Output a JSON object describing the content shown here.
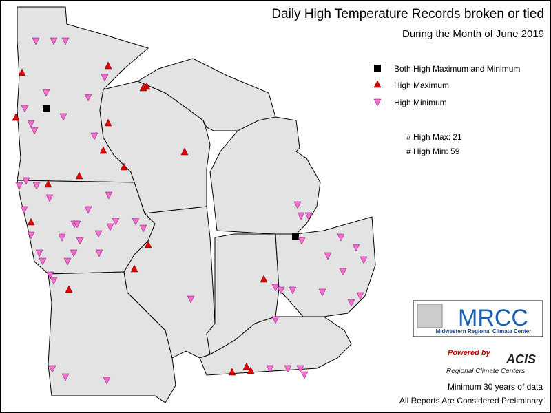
{
  "title": "Daily High Temperature Records broken or tied",
  "subtitle": "During the Month of June 2019",
  "legend": [
    "Both High Maximum and Minimum",
    "High Maximum",
    "High Minimum"
  ],
  "counts": [
    "# High Max: 21",
    "# High Min: 59"
  ],
  "logo": {
    "name": "MRCC",
    "full_name": "Midwestern Regional Climate Center"
  },
  "acis": {
    "powered_by": "Powered by",
    "name": "ACIS",
    "full_name": "Regional Climate Centers"
  },
  "notes": [
    "Minimum 30 years of data",
    "All Reports Are Considered Preliminary"
  ]
}
